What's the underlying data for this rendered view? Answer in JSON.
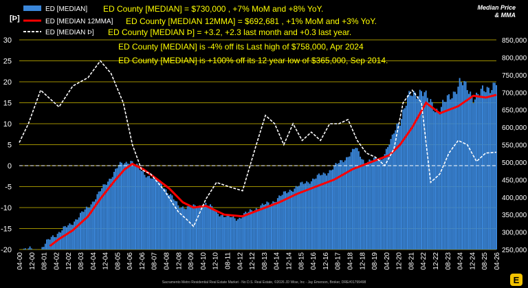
{
  "corner_label": "Median Price & MMA",
  "corner_label_lines": [
    "Median Price",
    "& MMA"
  ],
  "footer": "Sacramento Metro Residential Real Estate Market - No D.S. Real Estate, ©2026 JD Wise, Inc - Jay Emerson, Broker, DRE#01799498",
  "colors": {
    "background": "#000000",
    "bars": "#3a86d9",
    "mma_line": "#ff0000",
    "delta_line": "#ffffff",
    "text_highlight": "#ffff00",
    "grid": "#d4c200"
  },
  "chart_data": {
    "type": "bar",
    "legend_placement": "top-left",
    "grid": true,
    "x_tick_labels": [
      "04-00",
      "12-00",
      "08-01",
      "04-02",
      "12-02",
      "08-03",
      "04-04",
      "12-04",
      "08-05",
      "04-06",
      "12-06",
      "08-07",
      "04-08",
      "12-08",
      "08-09",
      "04-10",
      "12-10",
      "08-11",
      "04-12",
      "12-12",
      "08-13",
      "04-14",
      "12-14",
      "08-15",
      "04-16",
      "12-16",
      "08-17",
      "04-18",
      "12-18",
      "08-19",
      "04-20",
      "12-20",
      "08-21",
      "04-22",
      "12-22",
      "08-23",
      "04-24",
      "12-24",
      "08-25",
      "04-26"
    ],
    "x_range": [
      "2000-04",
      "2026-04"
    ],
    "left_axis": {
      "label": "[Þ]",
      "ticks": [
        30,
        25,
        20,
        15,
        10,
        5,
        0,
        -5,
        -10,
        -15,
        -20
      ],
      "range": [
        -20,
        30
      ]
    },
    "right_axis": {
      "ticks": [
        "850,000",
        "800,000",
        "750,000",
        "700,000",
        "650,000",
        "600,000",
        "550,000",
        "500,000",
        "450,000",
        "400,000",
        "350,000",
        "300,000",
        "250,000"
      ],
      "range": [
        250000,
        850000
      ]
    },
    "series": [
      {
        "name": "ED [MEDIAN]",
        "axis": "right",
        "style": "bar",
        "color": "#3a86d9",
        "points": [
          [
            "2000-04",
            250000
          ],
          [
            "2001-06",
            250000
          ],
          [
            "2002-01",
            285000
          ],
          [
            "2003-01",
            320000
          ],
          [
            "2004-01",
            370000
          ],
          [
            "2005-01",
            440000
          ],
          [
            "2005-09",
            490000
          ],
          [
            "2006-05",
            505000
          ],
          [
            "2007-01",
            470000
          ],
          [
            "2008-01",
            440000
          ],
          [
            "2008-12",
            375000
          ],
          [
            "2009-09",
            370000
          ],
          [
            "2010-06",
            380000
          ],
          [
            "2011-06",
            345000
          ],
          [
            "2012-04",
            340000
          ],
          [
            "2013-01",
            365000
          ],
          [
            "2014-01",
            385000
          ],
          [
            "2015-01",
            420000
          ],
          [
            "2016-01",
            445000
          ],
          [
            "2017-01",
            470000
          ],
          [
            "2018-01",
            510000
          ],
          [
            "2018-08",
            540000
          ],
          [
            "2019-02",
            500000
          ],
          [
            "2020-01",
            510000
          ],
          [
            "2020-07",
            560000
          ],
          [
            "2021-06",
            680000
          ],
          [
            "2022-03",
            710000
          ],
          [
            "2022-08",
            670000
          ],
          [
            "2023-02",
            650000
          ],
          [
            "2023-09",
            680000
          ],
          [
            "2024-04",
            730000
          ],
          [
            "2025-01",
            690000
          ],
          [
            "2025-08",
            700000
          ],
          [
            "2026-03",
            730000
          ]
        ]
      },
      {
        "name": "ED [MEDIAN 12MMA]",
        "axis": "right",
        "style": "line",
        "color": "#ff0000",
        "points": [
          [
            "2001-12",
            260000
          ],
          [
            "2002-06",
            280000
          ],
          [
            "2003-03",
            305000
          ],
          [
            "2004-01",
            345000
          ],
          [
            "2004-09",
            395000
          ],
          [
            "2005-06",
            445000
          ],
          [
            "2006-01",
            480000
          ],
          [
            "2006-06",
            495000
          ],
          [
            "2007-01",
            480000
          ],
          [
            "2007-09",
            455000
          ],
          [
            "2008-06",
            425000
          ],
          [
            "2009-03",
            385000
          ],
          [
            "2009-10",
            370000
          ],
          [
            "2010-06",
            375000
          ],
          [
            "2011-06",
            350000
          ],
          [
            "2012-06",
            345000
          ],
          [
            "2013-06",
            365000
          ],
          [
            "2014-06",
            385000
          ],
          [
            "2015-06",
            410000
          ],
          [
            "2016-06",
            430000
          ],
          [
            "2017-06",
            450000
          ],
          [
            "2018-06",
            480000
          ],
          [
            "2019-06",
            500000
          ],
          [
            "2020-06",
            520000
          ],
          [
            "2021-01",
            550000
          ],
          [
            "2021-09",
            600000
          ],
          [
            "2022-06",
            670000
          ],
          [
            "2023-03",
            640000
          ],
          [
            "2024-03",
            660000
          ],
          [
            "2025-01",
            690000
          ],
          [
            "2025-09",
            685000
          ],
          [
            "2026-04",
            692681
          ]
        ]
      },
      {
        "name": "ED [MEDIAN Þ]",
        "axis": "left",
        "style": "dashed-line",
        "color": "#ffffff",
        "points": [
          [
            "2000-04",
            5.5
          ],
          [
            "2000-10",
            10
          ],
          [
            "2001-06",
            18
          ],
          [
            "2002-06",
            14
          ],
          [
            "2003-03",
            19
          ],
          [
            "2004-01",
            21
          ],
          [
            "2004-09",
            25
          ],
          [
            "2005-04",
            22
          ],
          [
            "2005-12",
            15
          ],
          [
            "2006-06",
            5
          ],
          [
            "2006-12",
            -1
          ],
          [
            "2007-06",
            -2
          ],
          [
            "2008-03",
            -6
          ],
          [
            "2008-12",
            -11
          ],
          [
            "2009-06",
            -13
          ],
          [
            "2009-10",
            -14.5
          ],
          [
            "2010-06",
            -8
          ],
          [
            "2011-01",
            -4
          ],
          [
            "2011-09",
            -5
          ],
          [
            "2012-06",
            -6
          ],
          [
            "2013-03",
            5
          ],
          [
            "2013-09",
            12
          ],
          [
            "2014-03",
            10
          ],
          [
            "2014-09",
            5
          ],
          [
            "2015-03",
            10
          ],
          [
            "2015-09",
            6
          ],
          [
            "2016-03",
            8
          ],
          [
            "2016-09",
            6
          ],
          [
            "2017-03",
            10
          ],
          [
            "2017-09",
            10
          ],
          [
            "2018-03",
            11
          ],
          [
            "2018-09",
            6
          ],
          [
            "2019-03",
            3
          ],
          [
            "2019-09",
            2
          ],
          [
            "2020-03",
            0
          ],
          [
            "2020-09",
            4
          ],
          [
            "2021-03",
            15
          ],
          [
            "2021-09",
            18
          ],
          [
            "2022-03",
            15
          ],
          [
            "2022-09",
            -4
          ],
          [
            "2023-03",
            -2
          ],
          [
            "2023-09",
            3
          ],
          [
            "2024-03",
            6
          ],
          [
            "2024-09",
            5
          ],
          [
            "2025-03",
            1
          ],
          [
            "2025-09",
            3
          ],
          [
            "2026-04",
            3.2
          ]
        ]
      }
    ],
    "legend": [
      {
        "name": "ED [MEDIAN]",
        "note": "ED County [MEDIAN] = $730,000 , +7% MoM and +8% YoY."
      },
      {
        "name": "ED [MEDIAN 12MMA]",
        "note": "ED County [MEDIAN 12MMA] = $692,681 , +1% MoM and +3% YoY."
      },
      {
        "name": "ED [MEDIAN Þ]",
        "note": "ED County [MEDIAN Þ] = +3.2, +2.3 last month and +0.3 last year."
      }
    ],
    "annotations": [
      "ED County [MEDIAN] is -4% off its Last high of $758,000, Apr 2024",
      "ED County [MEDIAN] is +100% off its 12 year low of $365,000, Sep 2014."
    ]
  }
}
